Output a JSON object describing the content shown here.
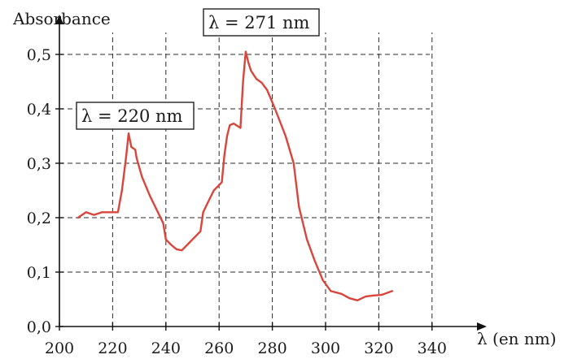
{
  "chart_data": {
    "type": "line",
    "title": "",
    "ylabel": "Absorbance",
    "xlabel": "λ (en nm)",
    "xlim": [
      200,
      350
    ],
    "ylim": [
      0,
      0.52
    ],
    "x_ticks": [
      200,
      220,
      240,
      260,
      280,
      300,
      320,
      340
    ],
    "x_tick_labels": [
      "200",
      "220",
      "240",
      "260",
      "280",
      "300",
      "320",
      "340"
    ],
    "y_ticks": [
      0,
      0.1,
      0.2,
      0.3,
      0.4,
      0.5
    ],
    "y_tick_labels": [
      "0,0",
      "0,1",
      "0,2",
      "0,3",
      "0,4",
      "0,5"
    ],
    "grid": true,
    "series": [
      {
        "color": "#d9453b",
        "points": [
          [
            207,
            0.2
          ],
          [
            210,
            0.21
          ],
          [
            213,
            0.205
          ],
          [
            216,
            0.21
          ],
          [
            219,
            0.21
          ],
          [
            222,
            0.21
          ],
          [
            223.5,
            0.25
          ],
          [
            225,
            0.31
          ],
          [
            226,
            0.355
          ],
          [
            227,
            0.33
          ],
          [
            228.5,
            0.325
          ],
          [
            229,
            0.31
          ],
          [
            231,
            0.275
          ],
          [
            234,
            0.24
          ],
          [
            237,
            0.21
          ],
          [
            239,
            0.19
          ],
          [
            240,
            0.16
          ],
          [
            242,
            0.15
          ],
          [
            244,
            0.142
          ],
          [
            246,
            0.14
          ],
          [
            248,
            0.15
          ],
          [
            251,
            0.165
          ],
          [
            253,
            0.175
          ],
          [
            254,
            0.21
          ],
          [
            256,
            0.23
          ],
          [
            258,
            0.25
          ],
          [
            261,
            0.265
          ],
          [
            262,
            0.315
          ],
          [
            263,
            0.35
          ],
          [
            264,
            0.37
          ],
          [
            265.5,
            0.373
          ],
          [
            268,
            0.365
          ],
          [
            269,
            0.45
          ],
          [
            270,
            0.505
          ],
          [
            271,
            0.485
          ],
          [
            272,
            0.47
          ],
          [
            274,
            0.455
          ],
          [
            276,
            0.448
          ],
          [
            278,
            0.435
          ],
          [
            281,
            0.4
          ],
          [
            285,
            0.35
          ],
          [
            288,
            0.3
          ],
          [
            290,
            0.22
          ],
          [
            293,
            0.16
          ],
          [
            296,
            0.12
          ],
          [
            299,
            0.085
          ],
          [
            302,
            0.065
          ],
          [
            306,
            0.06
          ],
          [
            309,
            0.052
          ],
          [
            312,
            0.048
          ],
          [
            315,
            0.055
          ],
          [
            318,
            0.057
          ],
          [
            321,
            0.058
          ],
          [
            325,
            0.065
          ]
        ]
      }
    ],
    "annotations": [
      {
        "text": "λ = 220 nm"
      },
      {
        "text": "λ = 271 nm"
      }
    ]
  }
}
